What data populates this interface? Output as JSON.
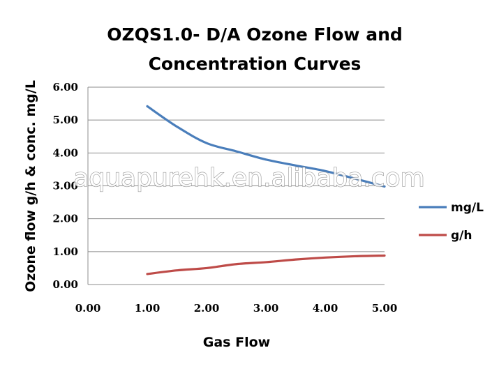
{
  "watermark": "aquapurehk.en.alibaba.com",
  "chart_data": {
    "type": "line",
    "title_lines": [
      "OZQS1.0- D/A Ozone Flow and",
      "Concentration Curves"
    ],
    "xlabel": "Gas Flow",
    "ylabel": "Ozone flow g/h & conc. mg/L",
    "xlim": [
      0,
      5
    ],
    "ylim": [
      0,
      6
    ],
    "x_ticks": [
      "0.00",
      "1.00",
      "2.00",
      "3.00",
      "4.00",
      "5.00"
    ],
    "y_ticks": [
      "0.00",
      "1.00",
      "2.00",
      "3.00",
      "4.00",
      "5.00",
      "6.00"
    ],
    "grid": "horizontal",
    "legend_position": "right",
    "series": [
      {
        "name": "mg/L",
        "color": "#4a7ebb",
        "x": [
          1.0,
          1.5,
          2.0,
          2.5,
          3.0,
          3.5,
          4.0,
          4.5,
          5.0
        ],
        "y": [
          5.42,
          4.8,
          4.3,
          4.05,
          3.8,
          3.62,
          3.45,
          3.22,
          2.98
        ]
      },
      {
        "name": "g/h",
        "color": "#be4b48",
        "x": [
          1.0,
          1.5,
          2.0,
          2.5,
          3.0,
          3.5,
          4.0,
          4.5,
          5.0
        ],
        "y": [
          0.32,
          0.43,
          0.5,
          0.62,
          0.68,
          0.76,
          0.82,
          0.86,
          0.88
        ]
      }
    ]
  }
}
